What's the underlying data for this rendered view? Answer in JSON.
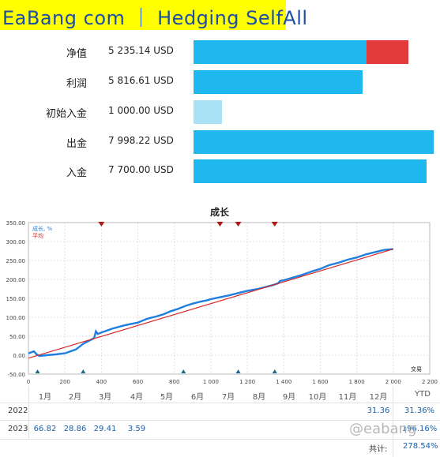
{
  "header": {
    "title": "EaBang com ｜ Hedging SelfAll"
  },
  "stats": [
    {
      "label": "净值",
      "value": "5 235.14 USD",
      "fill": 0.72,
      "extra_fill": 0.175,
      "color": "#1fb8ee",
      "extra_color": "#e23a3a"
    },
    {
      "label": "利润",
      "value": "5 816.61 USD",
      "fill": 0.704,
      "color": "#1fb8ee"
    },
    {
      "label": "初始入金",
      "value": "1 000.00 USD",
      "fill": 0.12,
      "color": "#a9e1f7"
    },
    {
      "label": "出金",
      "value": "7 998.22 USD",
      "fill": 1.0,
      "color": "#1fb8ee"
    },
    {
      "label": "入金",
      "value": "7 700.00 USD",
      "fill": 0.97,
      "color": "#1fb8ee"
    }
  ],
  "chart_data": {
    "type": "line",
    "title": "成长",
    "xlabel": "交易",
    "ylabel": "",
    "xlim": [
      0,
      2200
    ],
    "ylim": [
      -50,
      350
    ],
    "x_ticks": [
      "0",
      "200",
      "400",
      "600",
      "800",
      "1 000",
      "1 200",
      "1 400",
      "1 600",
      "1 800",
      "2 000",
      "2 200"
    ],
    "y_ticks": [
      "-50.00",
      "0.00",
      "50.00",
      "100.00",
      "150.00",
      "200.00",
      "250.00",
      "300.00",
      "350.00"
    ],
    "grid": true,
    "legend": {
      "position": "top-left"
    },
    "series": [
      {
        "name": "成长, %",
        "color": "#1e7fe0",
        "x": [
          0,
          30,
          45,
          60,
          100,
          150,
          200,
          260,
          300,
          340,
          360,
          370,
          380,
          400,
          460,
          520,
          560,
          600,
          650,
          700,
          740,
          780,
          820,
          860,
          900,
          950,
          980,
          1000,
          1050,
          1100,
          1150,
          1200,
          1260,
          1300,
          1340,
          1370,
          1380,
          1400,
          1450,
          1500,
          1560,
          1600,
          1650,
          1700,
          1750,
          1800,
          1850,
          1900,
          1950,
          2000
        ],
        "y": [
          5,
          10,
          2,
          -2,
          0,
          2,
          5,
          15,
          30,
          40,
          45,
          63,
          56,
          60,
          70,
          78,
          82,
          86,
          96,
          102,
          108,
          116,
          122,
          130,
          136,
          142,
          145,
          148,
          153,
          158,
          164,
          170,
          175,
          180,
          185,
          190,
          196,
          198,
          205,
          212,
          222,
          228,
          238,
          244,
          252,
          258,
          266,
          272,
          278,
          280
        ]
      },
      {
        "name": "平均",
        "color": "#d62828",
        "x": [
          0,
          2000
        ],
        "y": [
          -8,
          280
        ]
      }
    ],
    "markers_top": [
      400,
      1050,
      1150,
      1350
    ],
    "markers_bottom": [
      50,
      300,
      850,
      1150,
      1350
    ]
  },
  "table": {
    "months": [
      "1月",
      "2月",
      "3月",
      "4月",
      "5月",
      "6月",
      "7月",
      "8月",
      "9月",
      "10月",
      "11月",
      "12月"
    ],
    "ytd_label": "YTD",
    "rows": [
      {
        "year": "2022",
        "values": [
          "",
          "",
          "",
          "",
          "",
          "",
          "",
          "",
          "",
          "",
          "",
          "31.36"
        ],
        "ytd": "31.36%"
      },
      {
        "year": "2023",
        "values": [
          "66.82",
          "28.86",
          "29.41",
          "3.59",
          "",
          "",
          "",
          "",
          "",
          "",
          "",
          ""
        ],
        "ytd": "196.16%"
      }
    ],
    "total_label": "共计:",
    "total_value": "278.54%"
  },
  "watermark": "@eabang"
}
